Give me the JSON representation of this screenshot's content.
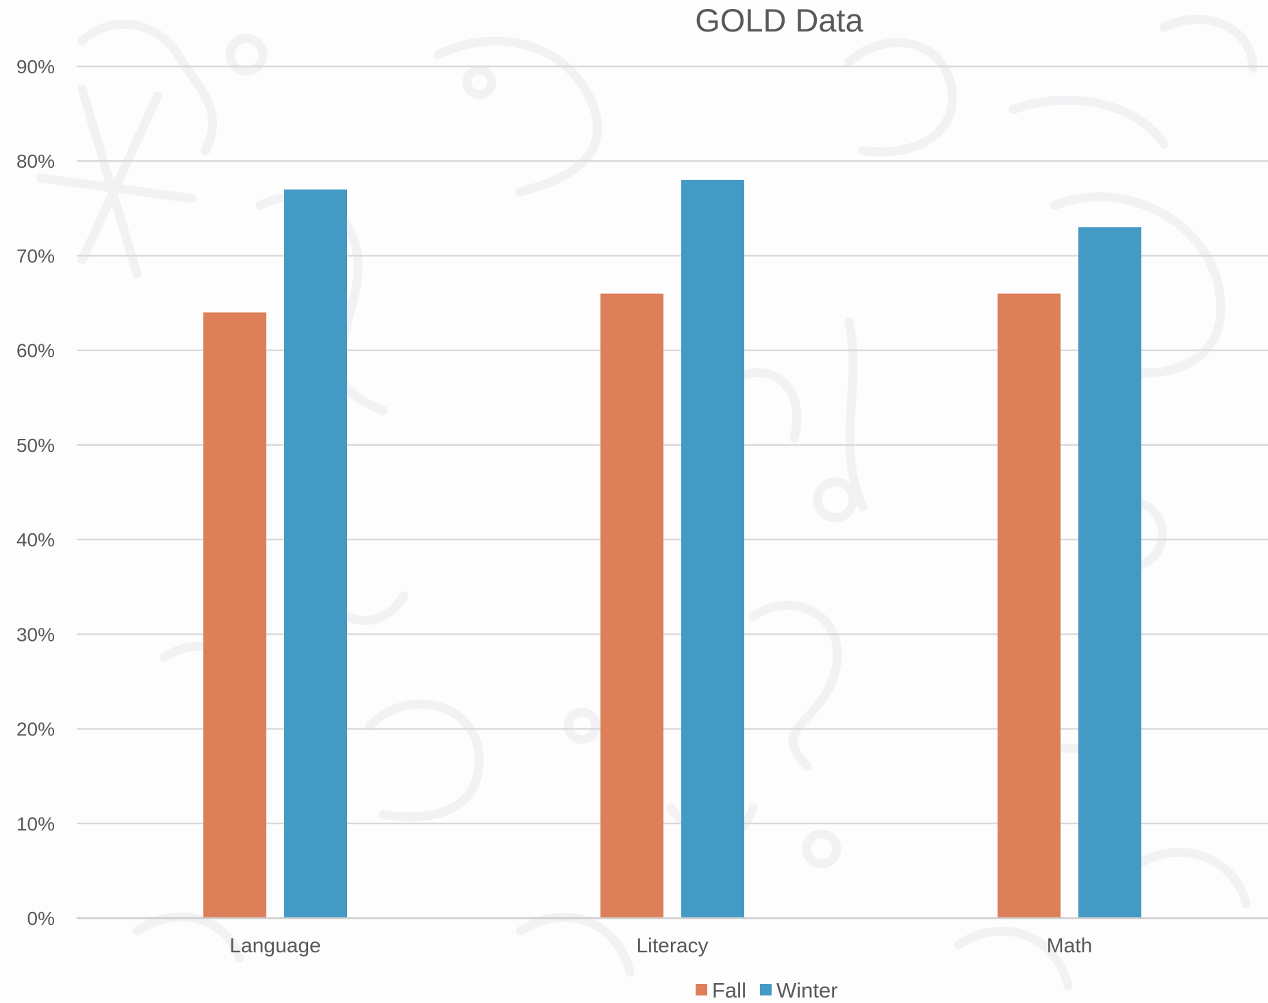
{
  "chart_data": {
    "type": "bar",
    "title": "GOLD Data",
    "xlabel": "",
    "ylabel": "",
    "categories": [
      "Language",
      "Literacy",
      "Math"
    ],
    "series": [
      {
        "name": "Fall",
        "color": "#dd7f58",
        "values": [
          64,
          66,
          66
        ]
      },
      {
        "name": "Winter",
        "color": "#439ac4",
        "values": [
          77,
          78,
          73
        ]
      }
    ],
    "ylim": [
      0,
      90
    ],
    "yticks": [
      "0%",
      "10%",
      "20%",
      "30%",
      "40%",
      "50%",
      "60%",
      "70%",
      "80%",
      "90%"
    ],
    "grid": true,
    "legend_position": "bottom"
  }
}
